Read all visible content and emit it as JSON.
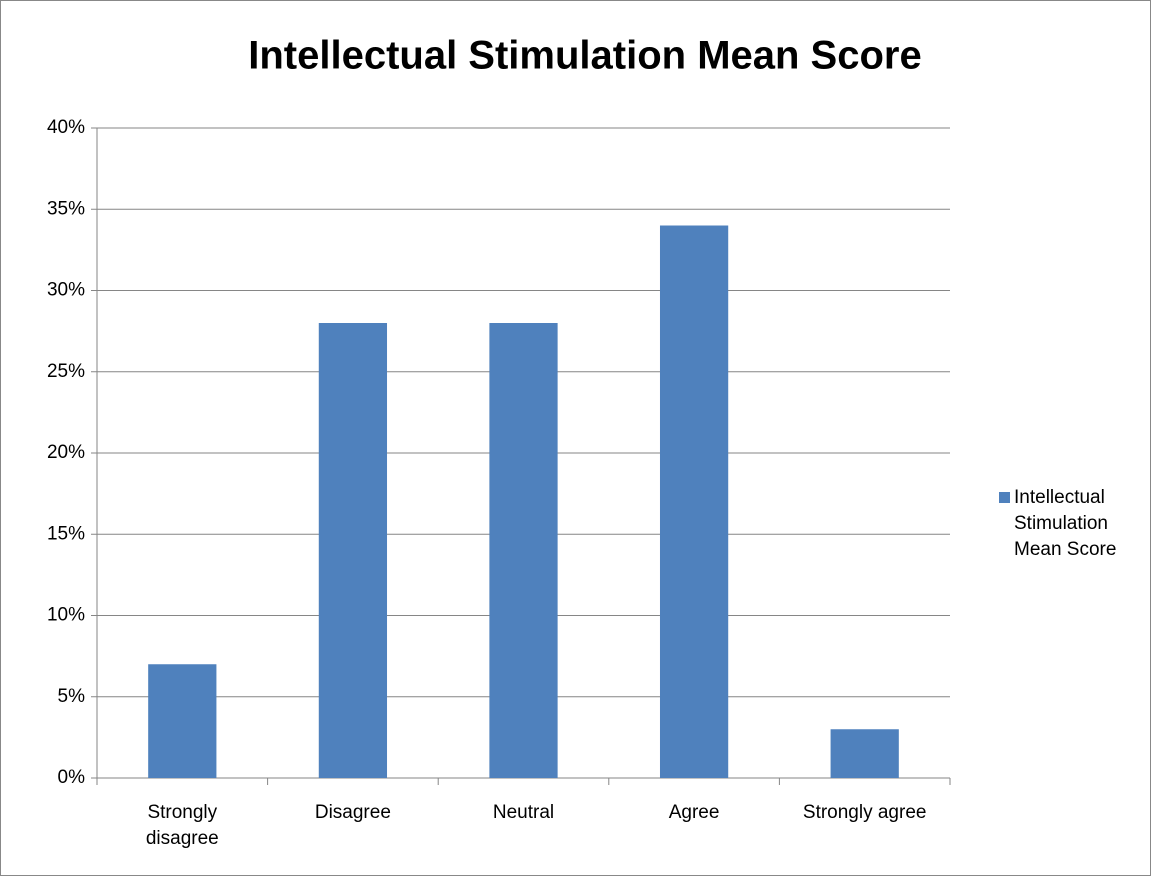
{
  "chart_data": {
    "type": "bar",
    "title": "Intellectual Stimulation Mean Score",
    "categories": [
      "Strongly disagree",
      "Disagree",
      "Neutral",
      "Agree",
      "Strongly agree"
    ],
    "series": [
      {
        "name": "Intellectual Stimulation Mean Score",
        "color": "#4f81bd",
        "values": [
          7,
          28,
          28,
          34,
          3
        ]
      }
    ],
    "ylim": [
      0,
      40
    ],
    "yticks": [
      {
        "value": 0,
        "label": "0%"
      },
      {
        "value": 5,
        "label": "5%"
      },
      {
        "value": 10,
        "label": "10%"
      },
      {
        "value": 15,
        "label": "15%"
      },
      {
        "value": 20,
        "label": "20%"
      },
      {
        "value": 25,
        "label": "25%"
      },
      {
        "value": 30,
        "label": "30%"
      },
      {
        "value": 35,
        "label": "35%"
      },
      {
        "value": 40,
        "label": "40%"
      }
    ],
    "grid": true,
    "legend": "right"
  }
}
